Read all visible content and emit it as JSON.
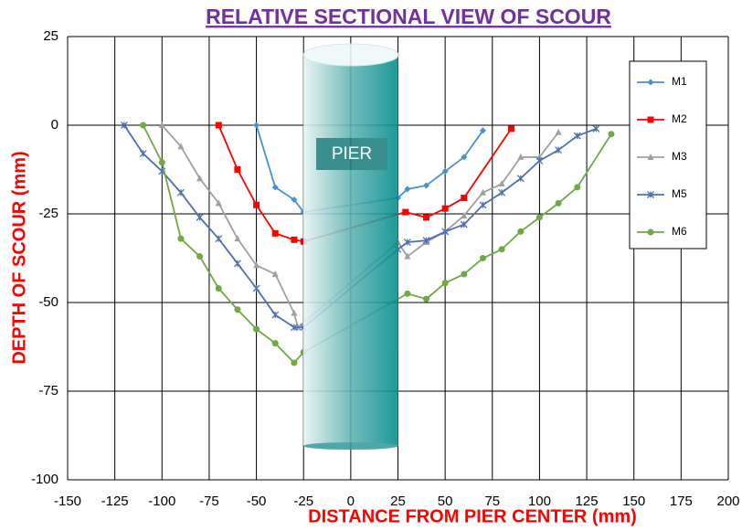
{
  "chart_data": {
    "type": "line",
    "title": "RELATIVE SECTIONAL VIEW OF SCOUR",
    "xlabel": "DISTANCE FROM PIER CENTER (mm)",
    "ylabel": "DEPTH OF SCOUR (mm)",
    "annotation": "PIER",
    "xlim": [
      -150,
      200
    ],
    "xticks": [
      -150,
      -125,
      -100,
      -75,
      -50,
      -25,
      0,
      25,
      50,
      75,
      100,
      125,
      150,
      175,
      200
    ],
    "ylim": [
      -100,
      25
    ],
    "yticks": [
      -100,
      -75,
      -50,
      -25,
      0,
      25
    ],
    "grid": true,
    "legend": "right",
    "series": [
      {
        "name": "M1",
        "color": "#4a8fd0",
        "marker": "diamond",
        "x": [
          -50,
          -40,
          -30,
          -25,
          25,
          30,
          40,
          50,
          60,
          70
        ],
        "values": [
          0,
          -17.5,
          -21,
          -24.5,
          -20.5,
          -18,
          -17,
          -13,
          -9,
          -1.5
        ]
      },
      {
        "name": "M2",
        "color": "#ff0000",
        "marker": "square",
        "x": [
          -70,
          -60,
          -50,
          -40,
          -30,
          -25,
          29,
          40,
          50,
          60,
          85
        ],
        "values": [
          0,
          -12.5,
          -22.5,
          -30.5,
          -32.3,
          -32.8,
          -24.5,
          -26,
          -23.5,
          -20.5,
          -1
        ]
      },
      {
        "name": "M3",
        "color": "#a0a0a0",
        "marker": "triangle",
        "x": [
          -100,
          -90,
          -80,
          -70,
          -60,
          -50,
          -40,
          -30,
          -28,
          25,
          30,
          40,
          50,
          60,
          70,
          80,
          90,
          100,
          110
        ],
        "values": [
          0,
          -6,
          -15,
          -22,
          -32,
          -39.5,
          -42,
          -53,
          -57,
          -33,
          -37,
          -33,
          -30,
          -25.5,
          -19,
          -16.5,
          -9,
          -9,
          -2
        ]
      },
      {
        "name": "M5",
        "color": "#4f6fb0",
        "marker": "x",
        "x": [
          -120,
          -110,
          -100,
          -90,
          -80,
          -70,
          -60,
          -50,
          -40,
          -30,
          -25,
          25,
          30,
          40,
          50,
          60,
          70,
          80,
          90,
          100,
          110,
          120,
          130
        ],
        "values": [
          0,
          -8,
          -13,
          -19,
          -26,
          -32,
          -39,
          -46,
          -53.5,
          -57,
          -57,
          -35,
          -33,
          -32.5,
          -30,
          -28,
          -22.5,
          -19,
          -15,
          -10,
          -7,
          -3,
          -1
        ]
      },
      {
        "name": "M6",
        "color": "#70a845",
        "marker": "circle",
        "x": [
          -110,
          -100,
          -90,
          -80,
          -70,
          -60,
          -50,
          -40,
          -30,
          -25,
          30,
          40,
          50,
          60,
          70,
          80,
          90,
          100,
          110,
          120,
          138
        ],
        "values": [
          0,
          -10.5,
          -32,
          -37,
          -46,
          -52,
          -57.5,
          -61.5,
          -67,
          -64,
          -47.5,
          -49,
          -44.5,
          -42,
          -37.5,
          -35,
          -30,
          -26,
          -22,
          -17.5,
          -2.5
        ]
      }
    ]
  }
}
